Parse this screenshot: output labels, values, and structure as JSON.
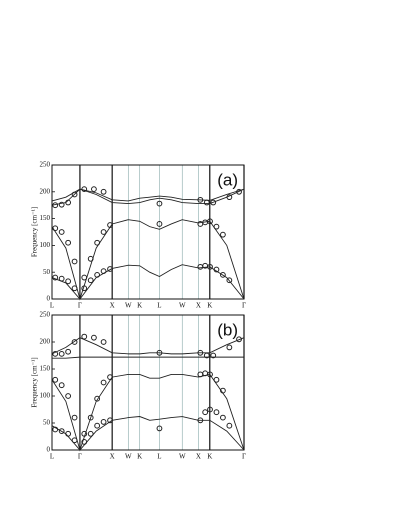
{
  "chart_data": [
    {
      "type": "line",
      "panel_label": "(a)",
      "ylabel": "Frequency [cm⁻¹]",
      "xlim": [
        0,
        5.954
      ],
      "ylim": [
        0,
        250
      ],
      "yticks": [
        0,
        50,
        100,
        150,
        200,
        250
      ],
      "xticks": [
        {
          "value": 0,
          "label": "L"
        },
        {
          "value": 0.866,
          "label": "Γ"
        },
        {
          "value": 1.866,
          "label": "X"
        },
        {
          "value": 2.366,
          "label": "W"
        },
        {
          "value": 2.72,
          "label": "K"
        },
        {
          "value": 3.332,
          "label": "L"
        },
        {
          "value": 4.039,
          "label": "W"
        },
        {
          "value": 4.539,
          "label": "X"
        },
        {
          "value": 4.893,
          "label": "K"
        },
        {
          "value": 5.954,
          "label": "Γ"
        }
      ],
      "series": [
        {
          "type": "line",
          "color": "#222222",
          "x": [
            0,
            0.43,
            0.866,
            1.37,
            1.866,
            2.366,
            2.72,
            3.03,
            3.332,
            3.7,
            4.039,
            4.539,
            4.893,
            5.42,
            5.954
          ],
          "values": [
            40,
            30,
            0,
            40,
            57,
            63,
            62,
            50,
            42,
            55,
            64,
            58,
            60,
            40,
            0
          ]
        },
        {
          "type": "line",
          "color": "#222222",
          "x": [
            0,
            0.43,
            0.866,
            1.37,
            1.866,
            2.366,
            2.72,
            3.03,
            3.332,
            3.7,
            4.039,
            4.539,
            4.893,
            5.42,
            5.954
          ],
          "values": [
            135,
            95,
            0,
            95,
            140,
            148,
            145,
            135,
            130,
            140,
            148,
            142,
            145,
            100,
            0
          ]
        },
        {
          "type": "line",
          "color": "#222222",
          "x": [
            0,
            0.43,
            0.866,
            1.37,
            1.866,
            2.366,
            2.72,
            3.03,
            3.332,
            3.7,
            4.039,
            4.539,
            4.893,
            5.42,
            5.954
          ],
          "values": [
            175,
            180,
            205,
            195,
            180,
            178,
            180,
            185,
            188,
            185,
            180,
            178,
            178,
            190,
            205
          ]
        },
        {
          "type": "line",
          "color": "#222222",
          "x": [
            0,
            0.43,
            0.866,
            1.37,
            1.866,
            2.366,
            2.72,
            3.03,
            3.332,
            3.7,
            4.039,
            4.539,
            4.893,
            5.42,
            5.954
          ],
          "values": [
            183,
            190,
            205,
            198,
            185,
            183,
            188,
            190,
            192,
            190,
            186,
            185,
            184,
            195,
            205
          ]
        },
        {
          "type": "scatter",
          "color": "#222222",
          "x": [
            0.1,
            0.3,
            0.5,
            0.7,
            0.1,
            0.3,
            0.5,
            0.7,
            0.1,
            0.3,
            0.5,
            0.7,
            1.0,
            1.2,
            1.4,
            1.6,
            1.8,
            1.0,
            1.2,
            1.4,
            1.6,
            1.8,
            1.0,
            1.3,
            1.6,
            4.6,
            4.75,
            4.9,
            5.1,
            5.3,
            5.5,
            4.6,
            4.75,
            4.9,
            5.1,
            5.3,
            4.6,
            4.8,
            5.0,
            5.5,
            5.8,
            3.332,
            3.332
          ],
          "values": [
            40,
            38,
            33,
            20,
            132,
            125,
            105,
            70,
            175,
            176,
            180,
            195,
            20,
            35,
            45,
            52,
            56,
            40,
            75,
            105,
            125,
            138,
            205,
            205,
            200,
            60,
            62,
            60,
            55,
            45,
            35,
            140,
            143,
            145,
            135,
            120,
            185,
            180,
            180,
            190,
            200,
            178,
            140
          ]
        }
      ]
    },
    {
      "type": "line",
      "panel_label": "(b)",
      "ylabel": "Frequency [cm⁻¹]",
      "xlim": [
        0,
        5.954
      ],
      "ylim": [
        0,
        250
      ],
      "yticks": [
        0,
        50,
        100,
        150,
        200,
        250
      ],
      "xticks": [
        {
          "value": 0,
          "label": "L"
        },
        {
          "value": 0.866,
          "label": "Γ"
        },
        {
          "value": 1.866,
          "label": "X"
        },
        {
          "value": 2.366,
          "label": "W"
        },
        {
          "value": 2.72,
          "label": "K"
        },
        {
          "value": 3.332,
          "label": "L"
        },
        {
          "value": 4.039,
          "label": "W"
        },
        {
          "value": 4.539,
          "label": "X"
        },
        {
          "value": 4.893,
          "label": "K"
        },
        {
          "value": 5.954,
          "label": "Γ"
        }
      ],
      "series": [
        {
          "type": "line",
          "color": "#222222",
          "x": [
            0,
            0.43,
            0.866,
            1.37,
            1.866,
            2.366,
            2.72,
            3.03,
            3.332,
            3.7,
            4.039,
            4.539,
            4.893,
            5.42,
            5.954
          ],
          "values": [
            45,
            30,
            0,
            35,
            55,
            60,
            62,
            55,
            57,
            60,
            62,
            55,
            55,
            35,
            0
          ]
        },
        {
          "type": "line",
          "color": "#222222",
          "x": [
            0,
            0.43,
            0.866,
            1.37,
            1.866,
            2.366,
            2.72,
            3.03,
            3.332,
            3.7,
            4.039,
            4.539,
            4.893,
            5.42,
            5.954
          ],
          "values": [
            130,
            90,
            0,
            90,
            135,
            140,
            140,
            133,
            133,
            140,
            140,
            135,
            140,
            95,
            0
          ]
        },
        {
          "type": "line",
          "color": "#222222",
          "x": [
            0,
            0.43,
            0.866,
            1.37,
            1.866,
            2.366,
            2.72,
            3.03,
            3.332,
            3.7,
            4.039,
            4.539,
            4.893,
            5.42,
            5.954
          ],
          "values": [
            170,
            170,
            172,
            172,
            172,
            172,
            172,
            172,
            172,
            172,
            172,
            172,
            172,
            172,
            172
          ]
        },
        {
          "type": "line",
          "color": "#222222",
          "x": [
            0,
            0.43,
            0.866,
            1.37,
            1.866,
            2.366,
            2.72,
            3.03,
            3.332,
            3.7,
            4.039,
            4.539,
            4.893,
            5.42,
            5.954
          ],
          "values": [
            178,
            190,
            208,
            195,
            180,
            178,
            178,
            180,
            180,
            178,
            178,
            180,
            180,
            195,
            208
          ]
        },
        {
          "type": "scatter",
          "color": "#222222",
          "x": [
            0.1,
            0.3,
            0.5,
            0.7,
            0.1,
            0.3,
            0.5,
            0.7,
            0.1,
            0.3,
            0.5,
            0.7,
            1.0,
            1.2,
            1.4,
            1.6,
            1.8,
            1.0,
            1.2,
            1.4,
            1.6,
            1.8,
            1.0,
            1.3,
            1.6,
            4.6,
            4.75,
            4.9,
            5.1,
            5.3,
            5.5,
            4.6,
            4.75,
            4.9,
            5.1,
            5.3,
            4.6,
            4.8,
            5.0,
            5.5,
            5.8,
            3.332,
            3.332
          ],
          "values": [
            38,
            35,
            30,
            18,
            130,
            120,
            100,
            60,
            178,
            178,
            182,
            200,
            15,
            30,
            45,
            52,
            55,
            30,
            60,
            95,
            125,
            135,
            210,
            208,
            200,
            55,
            70,
            75,
            70,
            60,
            45,
            140,
            142,
            140,
            130,
            110,
            180,
            175,
            175,
            190,
            205,
            180,
            40
          ]
        }
      ]
    }
  ]
}
